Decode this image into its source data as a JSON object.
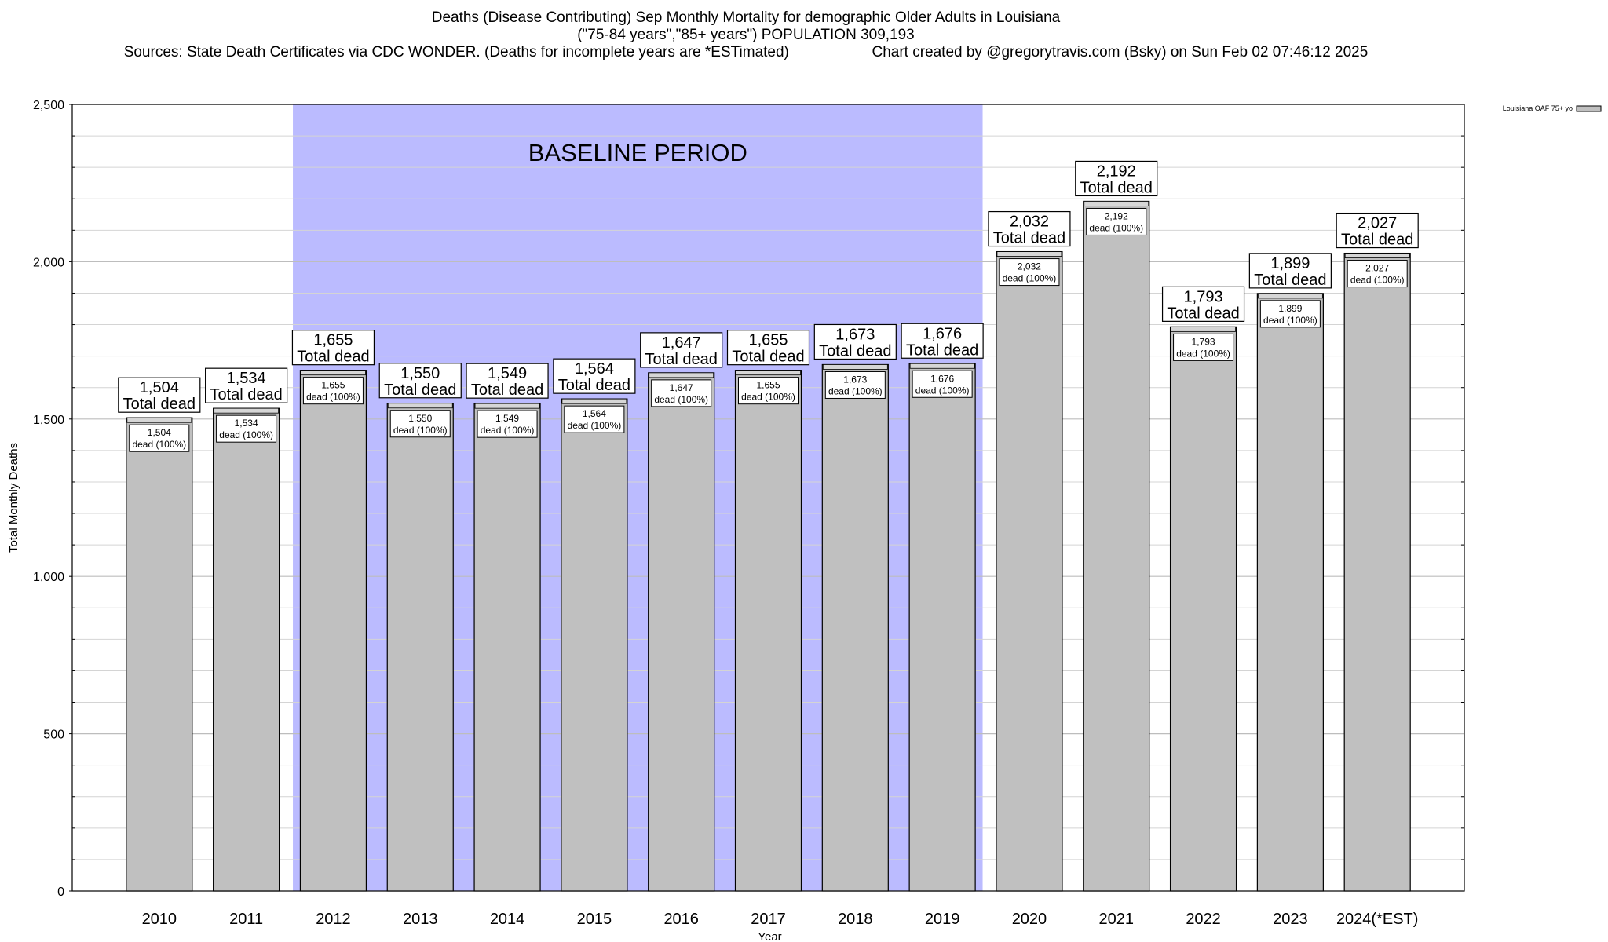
{
  "header": {
    "title_line1": "Deaths (Disease Contributing) Sep Monthly Mortality for demographic Older Adults in Louisiana",
    "title_line2": "(\"75-84 years\",\"85+ years\") POPULATION 309,193",
    "sources": "Sources: State Death Certificates via CDC WONDER. (Deaths for incomplete years are *ESTimated)",
    "credit": "Chart created by @gregorytravis.com (Bsky) on Sun Feb 02 07:46:12 2025"
  },
  "chart_data": {
    "type": "bar",
    "xlabel": "Year",
    "ylabel": "Total Monthly Deaths",
    "ylim": [
      0,
      2500
    ],
    "yticks": [
      0,
      500,
      1000,
      1500,
      2000,
      2500
    ],
    "ytick_labels": [
      "0",
      "500",
      "1,000",
      "1,500",
      "2,000",
      "2,500"
    ],
    "grid": true,
    "categories": [
      "2010",
      "2011",
      "2012",
      "2013",
      "2014",
      "2015",
      "2016",
      "2017",
      "2018",
      "2019",
      "2020",
      "2021",
      "2022",
      "2023",
      "2024(*EST)"
    ],
    "series": [
      {
        "name": "Louisiana OAF 75+ yo",
        "color": "#c0c0c0",
        "values": [
          1504,
          1534,
          1655,
          1550,
          1549,
          1564,
          1647,
          1655,
          1673,
          1676,
          2032,
          2192,
          1793,
          1899,
          2027
        ]
      }
    ],
    "total_labels": [
      "1,504",
      "1,534",
      "1,655",
      "1,550",
      "1,549",
      "1,564",
      "1,647",
      "1,655",
      "1,673",
      "1,676",
      "2,032",
      "2,192",
      "1,793",
      "1,899",
      "2,027"
    ],
    "total_label_suffix": "Total dead",
    "inner_label_suffix": "dead (100%)",
    "baseline_period": {
      "label": "BASELINE PERIOD",
      "start": "2012",
      "end": "2019",
      "color": "#bbbbff"
    },
    "legend": {
      "position": "top-right",
      "entries": [
        "Louisiana OAF 75+ yo"
      ]
    }
  }
}
